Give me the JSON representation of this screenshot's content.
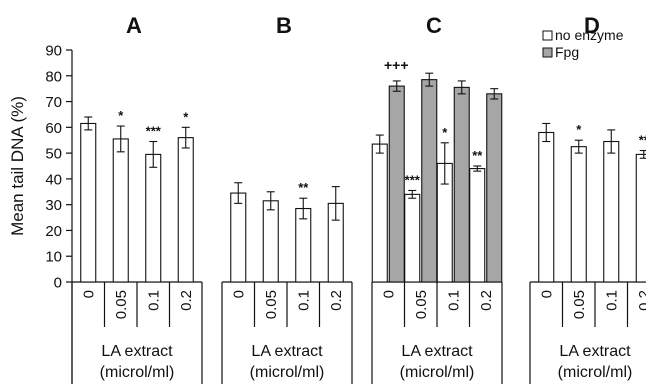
{
  "chart_data": {
    "type": "bar",
    "ylabel": "Mean tail DNA (%)",
    "ylim": [
      0,
      90
    ],
    "yticks": [
      0,
      10,
      20,
      30,
      40,
      50,
      60,
      70,
      80,
      90
    ],
    "grid": false,
    "legend": {
      "placement": "top-right",
      "entries": [
        {
          "label": "no enzyme",
          "color": "#ffffff"
        },
        {
          "label": "Fpg",
          "color": "#a6a6a6"
        }
      ]
    },
    "categories": [
      "0",
      "0.05",
      "0.1",
      "0.2"
    ],
    "group_xlabel_line1": "LA extract",
    "group_xlabel_line2": "(microl/ml)",
    "panels": [
      {
        "title": "A",
        "series": [
          {
            "name": "no enzyme",
            "values": [
              61.5,
              55.5,
              49.5,
              56
            ],
            "errors": [
              2.5,
              5,
              5,
              4
            ],
            "annotations": [
              "",
              "*",
              "***",
              "*"
            ]
          }
        ]
      },
      {
        "title": "B",
        "series": [
          {
            "name": "no enzyme",
            "values": [
              34.5,
              31.5,
              28.5,
              30.5
            ],
            "errors": [
              4,
              3.5,
              4,
              6.5
            ],
            "annotations": [
              "",
              "",
              "**",
              ""
            ]
          }
        ]
      },
      {
        "title": "C",
        "top_annotation": "+++",
        "series": [
          {
            "name": "no enzyme",
            "values": [
              53.5,
              34,
              46,
              44
            ],
            "errors": [
              3.5,
              1.5,
              8,
              1
            ],
            "annotations": [
              "",
              "***",
              "*",
              "**"
            ]
          },
          {
            "name": "Fpg",
            "values": [
              76,
              78.5,
              75.5,
              73
            ],
            "errors": [
              2,
              2.5,
              2.5,
              2
            ],
            "annotations": [
              "",
              "",
              "",
              ""
            ]
          }
        ]
      },
      {
        "title": "D",
        "series": [
          {
            "name": "no enzyme",
            "values": [
              58,
              52.5,
              54.5,
              49.5
            ],
            "errors": [
              3.5,
              2.5,
              4.5,
              1.5
            ],
            "annotations": [
              "",
              "*",
              "",
              "**"
            ]
          }
        ]
      }
    ]
  }
}
